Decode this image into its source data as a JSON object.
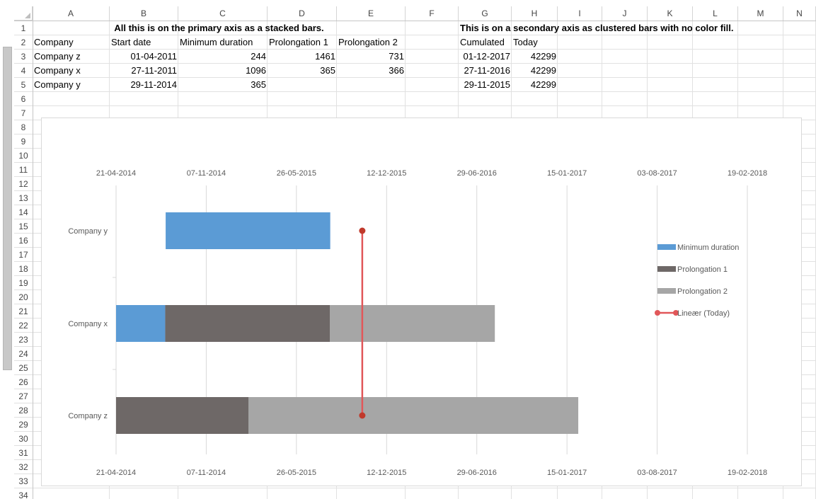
{
  "sheet": {
    "columns": [
      "A",
      "B",
      "C",
      "D",
      "E",
      "F",
      "G",
      "H",
      "I",
      "J",
      "K",
      "L",
      "M",
      "N"
    ],
    "rows": [
      "1",
      "2",
      "3",
      "4",
      "5",
      "6",
      "7",
      "8",
      "9",
      "10",
      "11",
      "12",
      "13",
      "14",
      "15",
      "16",
      "17",
      "18",
      "19",
      "20",
      "21",
      "22",
      "23",
      "24",
      "25",
      "26",
      "27",
      "28",
      "29",
      "30",
      "31",
      "32",
      "33",
      "34"
    ],
    "cells": {
      "r1": {
        "note_primary": "All this is on the primary axis as a stacked bars.",
        "note_secondary": "This is on a secondary axis as clustered bars with no color fill."
      },
      "r2": {
        "A": "Company",
        "B": "Start date",
        "C": "Minimum duration",
        "D": "Prolongation 1",
        "E": "Prolongation 2",
        "G": "Cumulated",
        "H": "Today"
      },
      "r3": {
        "A": "Company z",
        "B": "01-04-2011",
        "C": "244",
        "D": "1461",
        "E": "731",
        "G": "01-12-2017",
        "H": "42299"
      },
      "r4": {
        "A": "Company x",
        "B": "27-11-2011",
        "C": "1096",
        "D": "365",
        "E": "366",
        "G": "27-11-2016",
        "H": "42299"
      },
      "r5": {
        "A": "Company y",
        "B": "29-11-2014",
        "C": "365",
        "D": "",
        "E": "",
        "G": "29-11-2015",
        "H": "42299"
      }
    }
  },
  "chart_data": {
    "type": "bar",
    "orientation": "horizontal",
    "stacked": true,
    "x_tick_labels": [
      "21-04-2014",
      "07-11-2014",
      "26-05-2015",
      "12-12-2015",
      "29-06-2016",
      "15-01-2017",
      "03-08-2017",
      "19-02-2018"
    ],
    "x_range_days": [
      0,
      1400
    ],
    "x_tick_step_days": 200,
    "categories": [
      "Company y",
      "Company x",
      "Company z"
    ],
    "series": [
      {
        "name": "Minimum duration",
        "color": "#5b9bd5",
        "segments": {
          "Company y": [
            110,
            475
          ],
          "Company x": [
            0,
            109
          ],
          "Company z": null
        }
      },
      {
        "name": "Prolongation 1",
        "color": "#6e6867",
        "segments": {
          "Company y": null,
          "Company x": [
            109,
            474
          ],
          "Company z": [
            0,
            294
          ]
        }
      },
      {
        "name": "Prolongation 2",
        "color": "#a6a6a6",
        "segments": {
          "Company y": null,
          "Company x": [
            474,
            840
          ],
          "Company z": [
            294,
            1025
          ]
        }
      }
    ],
    "today_line": {
      "name": "Lineær (Today)",
      "x_days": 546,
      "color": "#e15759"
    },
    "legend": [
      "Minimum duration",
      "Prolongation 1",
      "Prolongation 2",
      "Lineær (Today)"
    ],
    "legend_position": "right"
  }
}
